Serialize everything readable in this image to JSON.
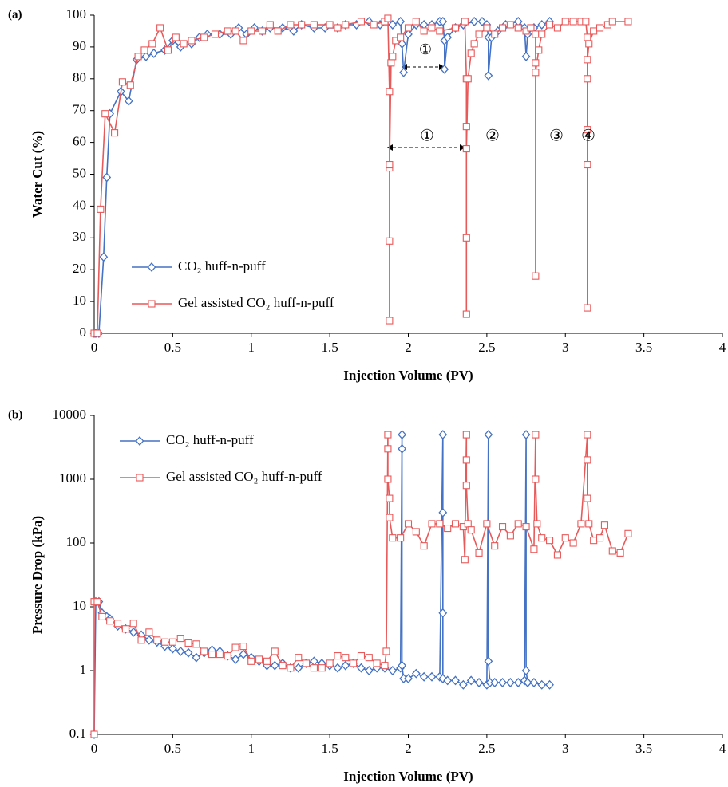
{
  "chart_data": [
    {
      "type": "line",
      "label": "(a)",
      "x_label": "Injection Volume (PV)",
      "y_label": "Water Cut (%)",
      "xlim": [
        0,
        4
      ],
      "xticks": [
        0,
        0.5,
        1,
        1.5,
        2,
        2.5,
        3,
        3.5,
        4
      ],
      "ylim": [
        0,
        100
      ],
      "yticks": [
        0,
        10,
        20,
        30,
        40,
        50,
        60,
        70,
        80,
        90,
        100
      ],
      "grid": false,
      "legend": "lower left",
      "series": [
        {
          "name": "CO₂ huff-n-puff",
          "color": "#4472c4",
          "marker": "diamond",
          "x": [
            0,
            0.01,
            0.03,
            0.06,
            0.08,
            0.1,
            0.17,
            0.22,
            0.27,
            0.33,
            0.38,
            0.45,
            0.5,
            0.55,
            0.62,
            0.67,
            0.72,
            0.8,
            0.87,
            0.92,
            0.97,
            1.02,
            1.07,
            1.12,
            1.2,
            1.27,
            1.32,
            1.4,
            1.47,
            1.55,
            1.6,
            1.67,
            1.75,
            1.82,
            1.9,
            1.95,
            1.96,
            1.97,
            2.0,
            2.05,
            2.1,
            2.15,
            2.2,
            2.22,
            2.23,
            2.23,
            2.25,
            2.3,
            2.35,
            2.42,
            2.47,
            2.5,
            2.51,
            2.51,
            2.53,
            2.57,
            2.62,
            2.7,
            2.74,
            2.75,
            2.76,
            2.8,
            2.85,
            2.9
          ],
          "values": [
            0,
            0,
            0,
            24,
            49,
            69,
            76,
            73,
            86,
            87,
            88,
            89,
            92,
            90,
            91,
            93,
            94,
            94,
            94,
            96,
            94,
            96,
            95,
            96,
            96,
            95,
            97,
            96,
            96,
            96,
            97,
            97,
            98,
            97,
            97,
            98,
            91,
            82,
            94,
            97,
            97,
            97,
            98,
            98,
            92,
            83,
            93,
            96,
            97,
            98,
            98,
            97,
            93,
            81,
            93,
            95,
            97,
            98,
            96,
            87,
            94,
            96,
            97,
            98
          ]
        },
        {
          "name": "Gel assisted CO₂ huff-n-puff",
          "color": "#e8595a",
          "marker": "square",
          "x": [
            0,
            0.02,
            0.04,
            0.07,
            0.13,
            0.18,
            0.23,
            0.28,
            0.32,
            0.37,
            0.42,
            0.47,
            0.52,
            0.57,
            0.62,
            0.7,
            0.77,
            0.85,
            0.9,
            0.95,
            1.0,
            1.07,
            1.12,
            1.17,
            1.25,
            1.32,
            1.4,
            1.5,
            1.55,
            1.6,
            1.7,
            1.78,
            1.85,
            1.87,
            1.88,
            1.88,
            1.88,
            1.88,
            1.88,
            1.89,
            1.9,
            1.92,
            1.95,
            2.0,
            2.05,
            2.1,
            2.15,
            2.2,
            2.3,
            2.36,
            2.37,
            2.37,
            2.37,
            2.37,
            2.37,
            2.38,
            2.4,
            2.42,
            2.45,
            2.5,
            2.55,
            2.6,
            2.65,
            2.7,
            2.75,
            2.78,
            2.81,
            2.81,
            2.81,
            2.81,
            2.83,
            2.85,
            2.9,
            2.95,
            3.0,
            3.05,
            3.1,
            3.13,
            3.14,
            3.14,
            3.14,
            3.14,
            3.14,
            3.14,
            3.15,
            3.18,
            3.22,
            3.27,
            3.3,
            3.4
          ],
          "values": [
            0,
            0,
            39,
            69,
            63,
            79,
            78,
            87,
            89,
            91,
            96,
            89,
            93,
            91,
            92,
            93,
            94,
            95,
            95,
            92,
            95,
            95,
            97,
            95,
            97,
            97,
            97,
            97,
            96,
            97,
            98,
            97,
            98,
            99,
            76,
            52,
            29,
            4,
            53,
            85,
            87,
            92,
            93,
            96,
            98,
            95,
            96,
            95,
            96,
            98,
            80,
            65,
            30,
            6,
            58,
            80,
            88,
            91,
            94,
            96,
            94,
            96,
            97,
            96,
            95,
            96,
            94,
            85,
            18,
            82,
            89,
            94,
            97,
            96,
            98,
            98,
            98,
            98,
            93,
            80,
            53,
            8,
            64,
            86,
            91,
            95,
            96,
            97,
            98,
            98
          ]
        }
      ],
      "annotations": [
        {
          "text": "①",
          "color": "#4472c4"
        },
        {
          "text": "①",
          "color": "#e8595a"
        },
        {
          "text": "②",
          "color": "#e8595a"
        },
        {
          "text": "③",
          "color": "#e8595a"
        },
        {
          "text": "④",
          "color": "#e8595a"
        }
      ]
    },
    {
      "type": "line",
      "label": "(b)",
      "x_label": "Injection Volume (PV)",
      "y_label": "Pressure Drop (kPa)",
      "xlim": [
        0,
        4
      ],
      "xticks": [
        0,
        0.5,
        1,
        1.5,
        2,
        2.5,
        3,
        3.5,
        4
      ],
      "ylim": [
        0.1,
        10000
      ],
      "yticks": [
        0.1,
        1,
        10,
        100,
        1000,
        10000
      ],
      "log_y": true,
      "grid": false,
      "legend": "upper left",
      "series": [
        {
          "name": "CO₂ huff-n-puff",
          "color": "#4472c4",
          "marker": "diamond",
          "x": [
            0,
            0.01,
            0.03,
            0.05,
            0.08,
            0.1,
            0.15,
            0.2,
            0.25,
            0.3,
            0.35,
            0.4,
            0.45,
            0.5,
            0.55,
            0.6,
            0.65,
            0.7,
            0.75,
            0.8,
            0.85,
            0.9,
            0.95,
            1.0,
            1.05,
            1.1,
            1.15,
            1.2,
            1.25,
            1.3,
            1.35,
            1.4,
            1.45,
            1.5,
            1.55,
            1.6,
            1.65,
            1.7,
            1.75,
            1.8,
            1.85,
            1.9,
            1.95,
            1.96,
            1.96,
            1.96,
            1.97,
            2.0,
            2.05,
            2.1,
            2.15,
            2.2,
            2.22,
            2.22,
            2.22,
            2.22,
            2.25,
            2.3,
            2.35,
            2.4,
            2.45,
            2.5,
            2.51,
            2.51,
            2.52,
            2.55,
            2.6,
            2.65,
            2.7,
            2.74,
            2.75,
            2.75,
            2.76,
            2.8,
            2.85,
            2.9
          ],
          "values": [
            0.1,
            12,
            12,
            8,
            7,
            6.5,
            5,
            4.5,
            4,
            3.6,
            3,
            2.8,
            2.4,
            2.2,
            2,
            1.9,
            1.6,
            1.9,
            2.1,
            2,
            1.7,
            1.5,
            1.8,
            1.6,
            1.4,
            1.2,
            1.2,
            1.3,
            1.1,
            1.1,
            1.3,
            1.4,
            1.3,
            1.2,
            1.1,
            1.2,
            1.3,
            1.1,
            1,
            1.1,
            1.1,
            1,
            1.1,
            5000,
            3000,
            1.2,
            0.75,
            0.75,
            0.9,
            0.8,
            0.8,
            0.8,
            5000,
            300,
            8,
            0.75,
            0.7,
            0.7,
            0.6,
            0.7,
            0.65,
            0.6,
            5000,
            1.4,
            0.65,
            0.65,
            0.65,
            0.65,
            0.65,
            0.7,
            5000,
            1,
            0.65,
            0.65,
            0.6,
            0.6
          ]
        },
        {
          "name": "Gel assisted CO₂ huff-n-puff",
          "color": "#e8595a",
          "marker": "square",
          "x": [
            0,
            0,
            0.02,
            0.05,
            0.1,
            0.15,
            0.2,
            0.25,
            0.3,
            0.35,
            0.4,
            0.45,
            0.5,
            0.55,
            0.6,
            0.65,
            0.7,
            0.75,
            0.8,
            0.85,
            0.9,
            0.95,
            1.0,
            1.05,
            1.1,
            1.15,
            1.2,
            1.25,
            1.3,
            1.35,
            1.4,
            1.45,
            1.5,
            1.55,
            1.6,
            1.65,
            1.7,
            1.75,
            1.8,
            1.85,
            1.86,
            1.87,
            1.87,
            1.87,
            1.88,
            1.88,
            1.9,
            1.95,
            2.0,
            2.05,
            2.1,
            2.15,
            2.2,
            2.25,
            2.3,
            2.35,
            2.36,
            2.37,
            2.37,
            2.37,
            2.38,
            2.4,
            2.45,
            2.5,
            2.55,
            2.6,
            2.65,
            2.7,
            2.75,
            2.8,
            2.81,
            2.81,
            2.82,
            2.85,
            2.9,
            2.95,
            3.0,
            3.05,
            3.1,
            3.14,
            3.14,
            3.14,
            3.15,
            3.18,
            3.22,
            3.25,
            3.3,
            3.35,
            3.4
          ],
          "values": [
            0.1,
            12,
            12,
            7,
            6,
            5.5,
            4.5,
            5.5,
            3,
            4,
            3,
            2.8,
            2.8,
            3.2,
            2.7,
            2.6,
            2,
            1.8,
            1.8,
            1.7,
            2.3,
            2.4,
            1.4,
            1.5,
            1.4,
            2,
            1.2,
            1.1,
            1.6,
            1.3,
            1.1,
            1.1,
            1.3,
            1.7,
            1.6,
            1.3,
            1.7,
            1.6,
            1.3,
            1.2,
            2,
            5000,
            3000,
            1000,
            500,
            250,
            120,
            120,
            200,
            150,
            90,
            200,
            200,
            170,
            200,
            180,
            55,
            5000,
            2000,
            800,
            200,
            160,
            70,
            200,
            90,
            180,
            130,
            200,
            180,
            80,
            5000,
            1000,
            200,
            120,
            110,
            65,
            120,
            100,
            200,
            5000,
            2000,
            500,
            200,
            110,
            120,
            190,
            75,
            70,
            140
          ]
        }
      ]
    }
  ]
}
